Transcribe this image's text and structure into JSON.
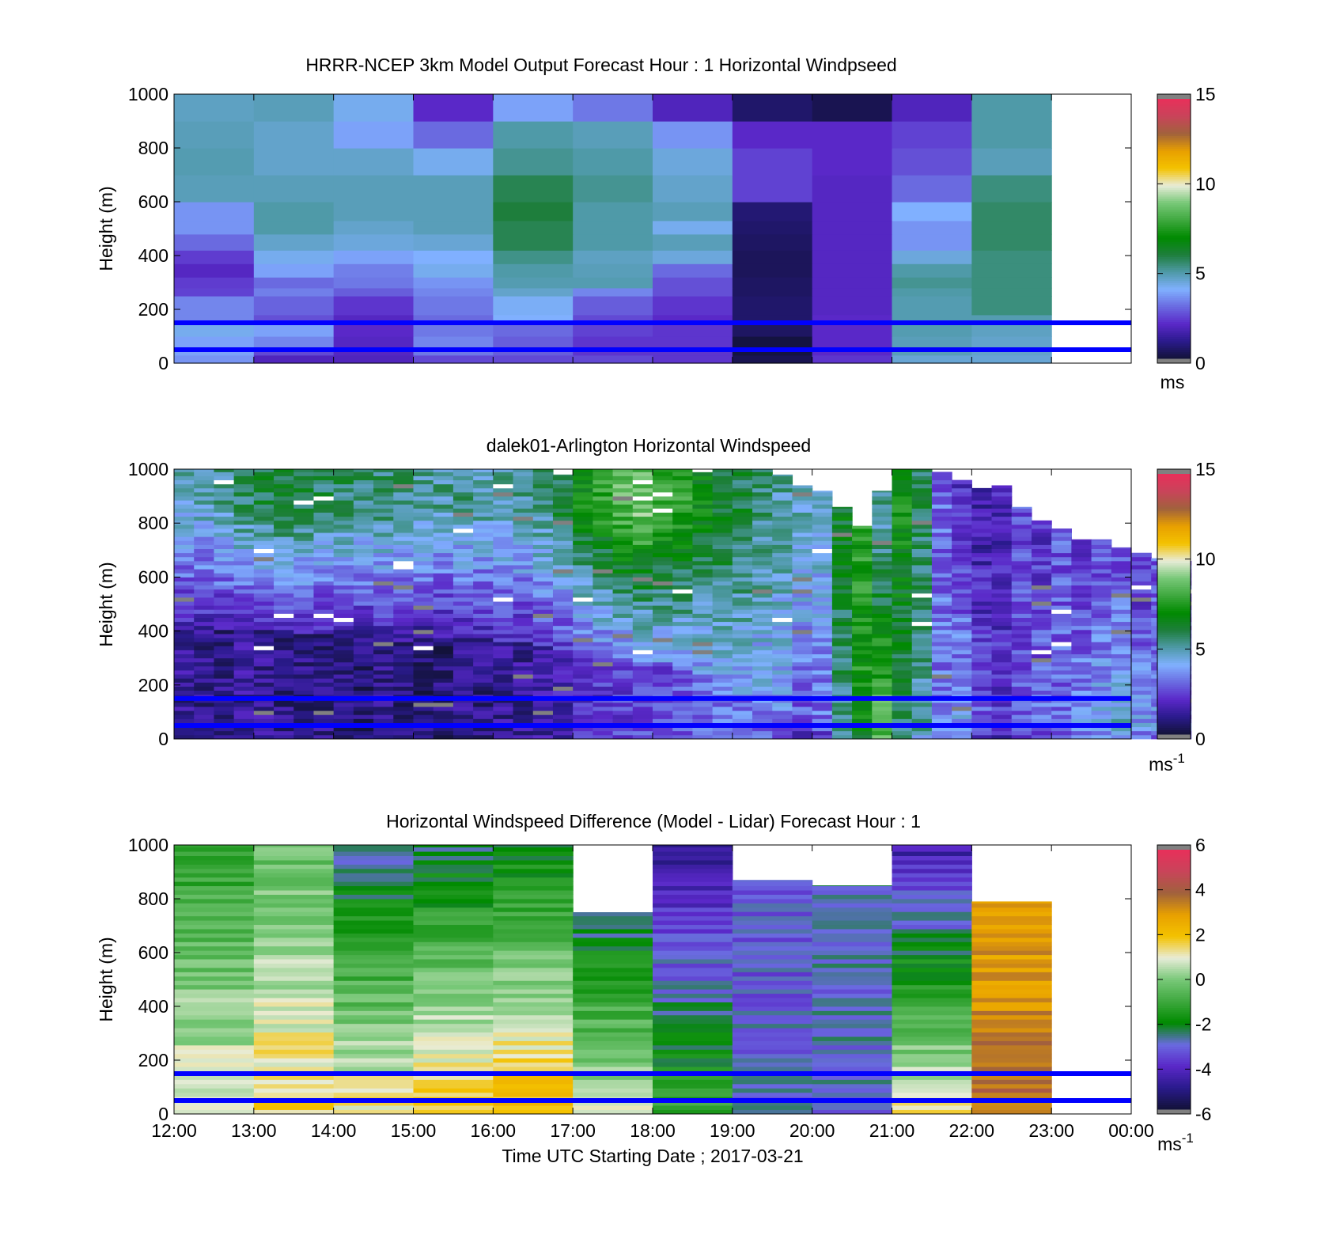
{
  "colors": {
    "speed_scale": [
      "#121238",
      "#2a1a8c",
      "#5a28c8",
      "#6a6ae0",
      "#80b0ff",
      "#4f9aa8",
      "#1e7e3c",
      "#008a00",
      "#3ea83e",
      "#78c878",
      "#e8ecd8",
      "#f4c200",
      "#e8a000",
      "#a0623c",
      "#c8445a",
      "#e8305a",
      "#808080"
    ],
    "diff_scale": [
      "#121238",
      "#2a1a8c",
      "#5a28c8",
      "#6a6ae0",
      "#008a00",
      "#3ea83e",
      "#78c878",
      "#e8ecd8",
      "#f4c200",
      "#e8a000",
      "#a0623c",
      "#c8445a",
      "#e8305a",
      "#808080"
    ],
    "reference_line": "#0000ff"
  },
  "chart_data": [
    {
      "type": "heatmap",
      "title": "HRRR-NCEP 3km Model Output   Forecast Hour : 1 Horizontal Windpseed",
      "ylabel": "Height (m)",
      "ylim": [
        0,
        1000
      ],
      "y_ticks": [
        "0",
        "200",
        "400",
        "600",
        "800",
        "1000"
      ],
      "x_ticks": [
        "12:00",
        "13:00",
        "14:00",
        "15:00",
        "16:00",
        "17:00",
        "18:00",
        "19:00",
        "20:00",
        "21:00",
        "22:00",
        "23:00",
        "00:00"
      ],
      "show_x_tick_labels": false,
      "colorbar": {
        "range": [
          0,
          15
        ],
        "ticks": [
          "0",
          "5",
          "10",
          "15"
        ],
        "unit": "ms",
        "unit_exp": ""
      },
      "reference_lines_m": [
        50,
        150
      ],
      "column_times": [
        "12:00",
        "13:00",
        "14:00",
        "15:00",
        "16:00",
        "17:00",
        "18:00",
        "19:00",
        "20:00",
        "21:00",
        "22:00"
      ],
      "level_boundaries_m": [
        0,
        30,
        50,
        100,
        150,
        180,
        250,
        280,
        320,
        370,
        420,
        480,
        530,
        600,
        700,
        800,
        900,
        1000
      ],
      "values_ms": [
        [
          3.6,
          1.8,
          1.8,
          2.5,
          2.5,
          2.5,
          2.2,
          0.3,
          2.2,
          4.5,
          4.5
        ],
        [
          3.8,
          2.5,
          1.9,
          3.2,
          2.8,
          2.2,
          2.2,
          0.1,
          2.0,
          4.8,
          4.6
        ],
        [
          3.8,
          3.4,
          1.9,
          3.4,
          2.8,
          2.2,
          2.2,
          0.1,
          2.0,
          4.8,
          4.6
        ],
        [
          4.2,
          3.8,
          2.0,
          3.2,
          3.0,
          2.4,
          2.2,
          0.5,
          2.0,
          4.9,
          4.7
        ],
        [
          3.4,
          2.6,
          1.9,
          3.0,
          4.0,
          2.5,
          2.0,
          0.6,
          2.0,
          4.9,
          4.9
        ],
        [
          3.4,
          2.9,
          2.2,
          3.2,
          4.1,
          2.8,
          2.2,
          0.6,
          1.9,
          4.9,
          5.4
        ],
        [
          2.4,
          3.3,
          2.8,
          3.4,
          4.6,
          3.4,
          2.6,
          0.5,
          1.9,
          5.0,
          5.4
        ],
        [
          2.3,
          3.0,
          3.2,
          3.6,
          4.9,
          4.9,
          2.6,
          0.5,
          1.9,
          5.2,
          5.4
        ],
        [
          1.9,
          3.8,
          3.3,
          4.2,
          5.0,
          4.8,
          3.0,
          0.4,
          1.9,
          5.0,
          5.4
        ],
        [
          2.3,
          4.2,
          3.8,
          4.0,
          5.3,
          4.7,
          4.4,
          0.4,
          1.9,
          4.4,
          5.4
        ],
        [
          3.0,
          4.6,
          4.4,
          4.5,
          5.8,
          5.0,
          4.8,
          0.5,
          1.9,
          3.6,
          5.6
        ],
        [
          3.6,
          5.0,
          4.6,
          4.8,
          5.8,
          5.0,
          4.2,
          0.6,
          1.9,
          3.6,
          5.6
        ],
        [
          3.6,
          5.0,
          4.8,
          4.8,
          6.0,
          5.0,
          4.8,
          0.7,
          1.9,
          4.0,
          5.6
        ],
        [
          4.8,
          4.8,
          4.8,
          4.8,
          5.8,
          5.2,
          4.6,
          2.4,
          1.9,
          3.0,
          5.4
        ],
        [
          4.9,
          4.6,
          4.6,
          4.2,
          5.2,
          5.0,
          4.4,
          2.4,
          2.0,
          2.6,
          4.8
        ],
        [
          4.8,
          4.6,
          3.8,
          3.0,
          5.0,
          4.8,
          3.6,
          2.0,
          2.0,
          2.4,
          5.0
        ],
        [
          4.7,
          4.8,
          4.2,
          2.0,
          3.8,
          3.2,
          1.8,
          0.6,
          0.3,
          1.8,
          5.0
        ]
      ]
    },
    {
      "type": "heatmap",
      "title": "dalek01-Arlington  Horizontal Windspeed",
      "ylabel": "Height (m)",
      "ylim": [
        0,
        1000
      ],
      "y_ticks": [
        "0",
        "200",
        "400",
        "600",
        "800",
        "1000"
      ],
      "x_ticks": [
        "12:00",
        "13:00",
        "14:00",
        "15:00",
        "16:00",
        "17:00",
        "18:00",
        "19:00",
        "20:00",
        "21:00",
        "22:00",
        "23:00",
        "00:00"
      ],
      "show_x_tick_labels": false,
      "colorbar": {
        "range": [
          0,
          15
        ],
        "ticks": [
          "0",
          "5",
          "10",
          "15"
        ],
        "unit": "ms",
        "unit_exp": "-1"
      },
      "reference_lines_m": [
        50,
        150
      ],
      "profile_spacing_h": 0.25,
      "profile_start_h": 0.0,
      "level_step_m": 15,
      "profiles": [
        {
          "top_m": 1000,
          "lo_m": 420,
          "speed_lo": 1.2,
          "speed_hi": 4.6
        },
        {
          "top_m": 1000,
          "lo_m": 410,
          "speed_lo": 1.0,
          "speed_hi": 4.8
        },
        {
          "top_m": 1000,
          "lo_m": 400,
          "speed_lo": 1.0,
          "speed_hi": 5.2
        },
        {
          "top_m": 1000,
          "lo_m": 400,
          "speed_lo": 1.2,
          "speed_hi": 5.6
        },
        {
          "top_m": 1000,
          "lo_m": 400,
          "speed_lo": 1.2,
          "speed_hi": 6.0
        },
        {
          "top_m": 1000,
          "lo_m": 390,
          "speed_lo": 1.0,
          "speed_hi": 6.2
        },
        {
          "top_m": 1000,
          "lo_m": 390,
          "speed_lo": 1.0,
          "speed_hi": 6.0
        },
        {
          "top_m": 1000,
          "lo_m": 390,
          "speed_lo": 1.0,
          "speed_hi": 5.8
        },
        {
          "top_m": 1000,
          "lo_m": 380,
          "speed_lo": 0.8,
          "speed_hi": 5.6
        },
        {
          "top_m": 1000,
          "lo_m": 370,
          "speed_lo": 0.8,
          "speed_hi": 5.4
        },
        {
          "top_m": 1000,
          "lo_m": 370,
          "speed_lo": 1.0,
          "speed_hi": 5.6
        },
        {
          "top_m": 1000,
          "lo_m": 360,
          "speed_lo": 0.8,
          "speed_hi": 5.4
        },
        {
          "top_m": 1000,
          "lo_m": 360,
          "speed_lo": 0.8,
          "speed_hi": 5.0
        },
        {
          "top_m": 1000,
          "lo_m": 370,
          "speed_lo": 0.8,
          "speed_hi": 5.0
        },
        {
          "top_m": 1000,
          "lo_m": 380,
          "speed_lo": 1.0,
          "speed_hi": 5.2
        },
        {
          "top_m": 1000,
          "lo_m": 370,
          "speed_lo": 1.0,
          "speed_hi": 5.0
        },
        {
          "top_m": 1000,
          "lo_m": 360,
          "speed_lo": 1.2,
          "speed_hi": 5.0
        },
        {
          "top_m": 1000,
          "lo_m": 350,
          "speed_lo": 1.2,
          "speed_hi": 5.2
        },
        {
          "top_m": 1000,
          "lo_m": 340,
          "speed_lo": 1.4,
          "speed_hi": 5.4
        },
        {
          "top_m": 980,
          "lo_m": 330,
          "speed_lo": 1.6,
          "speed_hi": 6.0
        },
        {
          "top_m": 1000,
          "lo_m": 300,
          "speed_lo": 2.0,
          "speed_hi": 7.0
        },
        {
          "top_m": 1000,
          "lo_m": 290,
          "speed_lo": 2.2,
          "speed_hi": 7.6
        },
        {
          "top_m": 1000,
          "lo_m": 280,
          "speed_lo": 2.4,
          "speed_hi": 8.4
        },
        {
          "top_m": 1000,
          "lo_m": 280,
          "speed_lo": 2.6,
          "speed_hi": 8.8
        },
        {
          "top_m": 1000,
          "lo_m": 260,
          "speed_lo": 2.6,
          "speed_hi": 8.0
        },
        {
          "top_m": 1000,
          "lo_m": 250,
          "speed_lo": 2.8,
          "speed_hi": 7.6
        },
        {
          "top_m": 1000,
          "lo_m": 220,
          "speed_lo": 3.0,
          "speed_hi": 6.8
        },
        {
          "top_m": 1000,
          "lo_m": 180,
          "speed_lo": 3.2,
          "speed_hi": 6.4
        },
        {
          "top_m": 1000,
          "lo_m": 150,
          "speed_lo": 3.2,
          "speed_hi": 6.0
        },
        {
          "top_m": 1000,
          "lo_m": 120,
          "speed_lo": 3.0,
          "speed_hi": 5.4
        },
        {
          "top_m": 980,
          "lo_m": 60,
          "speed_lo": 2.8,
          "speed_hi": 5.0
        },
        {
          "top_m": 940,
          "lo_m": 30,
          "speed_lo": 2.0,
          "speed_hi": 4.6
        },
        {
          "top_m": 920,
          "lo_m": 20,
          "speed_lo": 2.4,
          "speed_hi": 4.4
        },
        {
          "top_m": 860,
          "lo_m": 20,
          "speed_lo": 4.6,
          "speed_hi": 6.4
        },
        {
          "top_m": 790,
          "lo_m": 20,
          "speed_lo": 6.6,
          "speed_hi": 7.6
        },
        {
          "top_m": 920,
          "lo_m": 20,
          "speed_lo": 8.4,
          "speed_hi": 5.0
        },
        {
          "top_m": 1000,
          "lo_m": 20,
          "speed_lo": 5.0,
          "speed_hi": 7.0
        },
        {
          "top_m": 1000,
          "lo_m": 20,
          "speed_lo": 4.4,
          "speed_hi": 5.8
        },
        {
          "top_m": 990,
          "lo_m": 20,
          "speed_lo": 2.6,
          "speed_hi": 3.0
        },
        {
          "top_m": 960,
          "lo_m": 20,
          "speed_lo": 3.4,
          "speed_hi": 2.2
        },
        {
          "top_m": 930,
          "lo_m": 20,
          "speed_lo": 2.2,
          "speed_hi": 1.6
        },
        {
          "top_m": 940,
          "lo_m": 20,
          "speed_lo": 1.6,
          "speed_hi": 1.8
        },
        {
          "top_m": 860,
          "lo_m": 20,
          "speed_lo": 2.2,
          "speed_hi": 2.6
        },
        {
          "top_m": 810,
          "lo_m": 20,
          "speed_lo": 2.6,
          "speed_hi": 2.2
        },
        {
          "top_m": 780,
          "lo_m": 20,
          "speed_lo": 2.4,
          "speed_hi": 2.8
        },
        {
          "top_m": 740,
          "lo_m": 20,
          "speed_lo": 3.2,
          "speed_hi": 2.4
        },
        {
          "top_m": 740,
          "lo_m": 20,
          "speed_lo": 3.6,
          "speed_hi": 2.6
        },
        {
          "top_m": 710,
          "lo_m": 20,
          "speed_lo": 4.2,
          "speed_hi": 2.8
        },
        {
          "top_m": 690,
          "lo_m": 20,
          "speed_lo": 3.4,
          "speed_hi": 2.2
        },
        {
          "top_m": 670,
          "lo_m": 20,
          "speed_lo": 3.0,
          "speed_hi": 2.8
        },
        {
          "top_m": 660,
          "lo_m": 20,
          "speed_lo": 2.4,
          "speed_hi": 2.4
        }
      ]
    },
    {
      "type": "heatmap",
      "title": "Horizontal Windspeed Difference (Model - Lidar) Forecast Hour : 1",
      "ylabel": "Height (m)",
      "xlabel": "Time UTC  Starting Date ; 2017-03-21",
      "ylim": [
        0,
        1000
      ],
      "y_ticks": [
        "0",
        "200",
        "400",
        "600",
        "800",
        "1000"
      ],
      "x_ticks": [
        "12:00",
        "13:00",
        "14:00",
        "15:00",
        "16:00",
        "17:00",
        "18:00",
        "19:00",
        "20:00",
        "21:00",
        "22:00",
        "23:00",
        "00:00"
      ],
      "show_x_tick_labels": true,
      "colorbar": {
        "range": [
          -6,
          6
        ],
        "ticks": [
          "-6",
          "-4",
          "-2",
          "0",
          "2",
          "4",
          "6"
        ],
        "unit": "ms",
        "unit_exp": "-1"
      },
      "reference_lines_m": [
        50,
        150
      ],
      "column_times": [
        "12:00",
        "13:00",
        "14:00",
        "15:00",
        "16:00",
        "17:00",
        "18:00",
        "19:00",
        "20:00",
        "21:00",
        "22:00"
      ],
      "level_step_m": 16,
      "columns": [
        {
          "top_m": 1000,
          "lo_val": 1.2,
          "hi_val": -1.4
        },
        {
          "top_m": 1000,
          "lo_val": 1.6,
          "hi_val": -0.4
        },
        {
          "top_m": 1000,
          "lo_val": 1.4,
          "hi_val": -3.0
        },
        {
          "top_m": 1000,
          "lo_val": 2.0,
          "hi_val": -2.6
        },
        {
          "top_m": 1000,
          "lo_val": 2.4,
          "hi_val": -2.2
        },
        {
          "top_m": 750,
          "lo_val": 1.0,
          "hi_val": -2.8
        },
        {
          "top_m": 1000,
          "lo_val": -1.2,
          "hi_val": -4.8
        },
        {
          "top_m": 870,
          "lo_val": -3.0,
          "hi_val": -3.4
        },
        {
          "top_m": 850,
          "lo_val": -3.0,
          "hi_val": -2.8
        },
        {
          "top_m": 1000,
          "lo_val": 1.4,
          "hi_val": -4.6
        },
        {
          "top_m": 790,
          "lo_val": 3.8,
          "hi_val": 2.8
        }
      ]
    }
  ]
}
